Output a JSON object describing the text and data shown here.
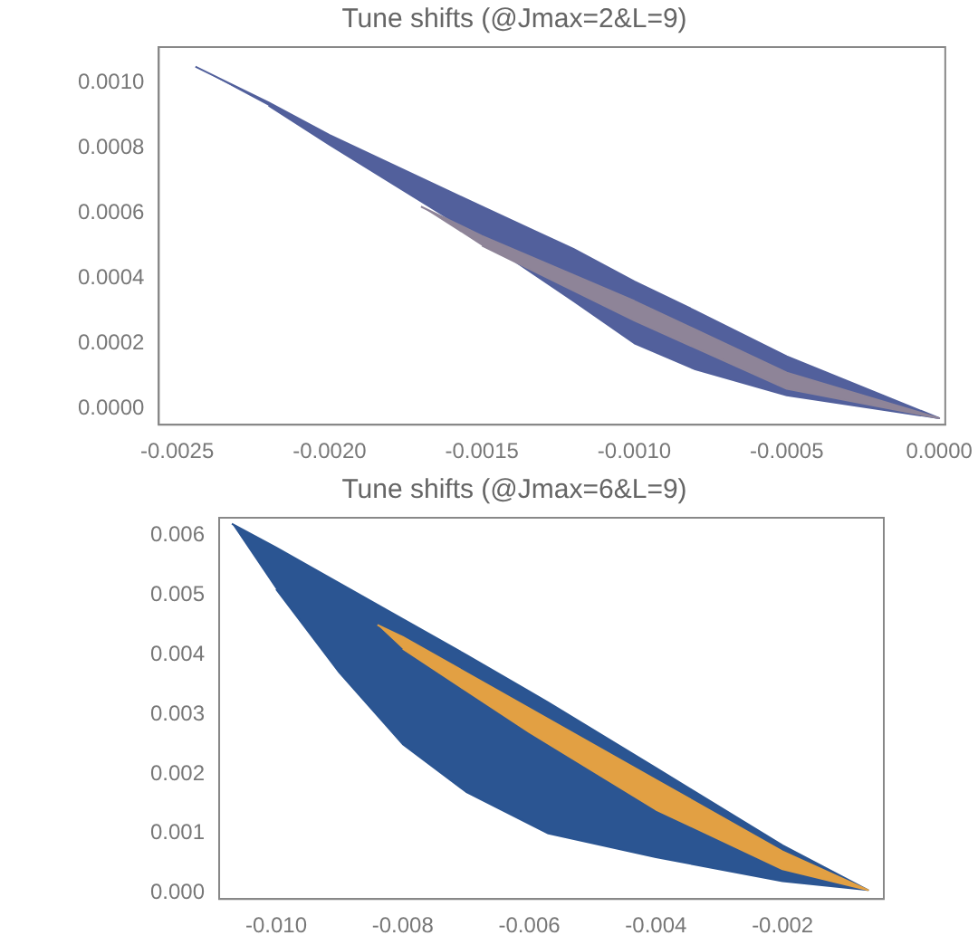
{
  "chart_data": [
    {
      "type": "area",
      "title": "Tune shifts (@Jmax=2&L=9)",
      "series": [
        {
          "color": "#52609c",
          "x": [
            -0.00244,
            -0.0022,
            -0.002,
            -0.0015,
            -0.0012,
            -0.001,
            -0.0008,
            -0.0005,
            0,
            -0.0005,
            -0.0008,
            -0.001,
            -0.0012,
            -0.0015,
            -0.002,
            -0.0022
          ],
          "values": [
            0.00105,
            0.00094,
            0.00084,
            0.00062,
            0.00049,
            0.00039,
            0.0003,
            0.00016,
            -3e-05,
            4e-05,
            0.00012,
            0.0002,
            0.00033,
            0.00052,
            0.00081,
            0.00093
          ]
        },
        {
          "color": "#8e8498",
          "x": [
            -0.0017,
            -0.0015,
            -0.001,
            -0.0005,
            0,
            -0.0005,
            -0.001,
            -0.0015
          ],
          "values": [
            0.00062,
            0.00053,
            0.00033,
            0.00011,
            -3e-05,
            6e-05,
            0.00027,
            0.0005
          ]
        }
      ],
      "xlim": [
        -0.00256,
        2e-05
      ],
      "ylim": [
        -5e-05,
        0.00111
      ],
      "xticks": [
        {
          "value": -0.0025,
          "label": "-0.0025"
        },
        {
          "value": -0.002,
          "label": "-0.0020"
        },
        {
          "value": -0.0015,
          "label": "-0.0015"
        },
        {
          "value": -0.001,
          "label": "-0.0010"
        },
        {
          "value": -0.0005,
          "label": "-0.0005"
        },
        {
          "value": 0,
          "label": "0.0000"
        }
      ],
      "yticks": [
        {
          "value": 0,
          "label": "0.0000"
        },
        {
          "value": 0.0002,
          "label": "0.0002"
        },
        {
          "value": 0.0004,
          "label": "0.0004"
        },
        {
          "value": 0.0006,
          "label": "0.0006"
        },
        {
          "value": 0.0008,
          "label": "0.0008"
        },
        {
          "value": 0.001,
          "label": "0.0010"
        }
      ],
      "grid": false,
      "legend": false
    },
    {
      "type": "area",
      "title": "Tune shifts (@Jmax=6&L=9)",
      "series": [
        {
          "color": "#2b5592",
          "x": [
            -0.0107,
            -0.01,
            -0.009,
            -0.008,
            -0.007,
            -0.0057,
            -0.004,
            -0.002,
            -0.00065,
            -0.002,
            -0.004,
            -0.0057,
            -0.007,
            -0.008,
            -0.009,
            -0.01
          ],
          "values": [
            0.0062,
            0.0058,
            0.0052,
            0.0046,
            0.004,
            0.0032,
            0.0021,
            0.0008,
            5e-05,
            0.0002,
            0.0006,
            0.001,
            0.0017,
            0.0025,
            0.0037,
            0.0051
          ]
        },
        {
          "color": "#e2a043",
          "x": [
            -0.0084,
            -0.008,
            -0.006,
            -0.004,
            -0.002,
            -0.00065,
            -0.002,
            -0.004,
            -0.006,
            -0.008
          ],
          "values": [
            0.0045,
            0.0043,
            0.0031,
            0.0019,
            0.0007,
            5e-05,
            0.0004,
            0.0014,
            0.0027,
            0.0041
          ]
        }
      ],
      "xlim": [
        -0.0109,
        -0.0004
      ],
      "ylim": [
        -0.0001,
        0.0063
      ],
      "xticks": [
        {
          "value": -0.01,
          "label": "-0.010"
        },
        {
          "value": -0.008,
          "label": "-0.008"
        },
        {
          "value": -0.006,
          "label": "-0.006"
        },
        {
          "value": -0.004,
          "label": "-0.004"
        },
        {
          "value": -0.002,
          "label": "-0.002"
        }
      ],
      "yticks": [
        {
          "value": 0,
          "label": "0.000"
        },
        {
          "value": 0.001,
          "label": "0.001"
        },
        {
          "value": 0.002,
          "label": "0.002"
        },
        {
          "value": 0.003,
          "label": "0.003"
        },
        {
          "value": 0.004,
          "label": "0.004"
        },
        {
          "value": 0.005,
          "label": "0.005"
        },
        {
          "value": 0.006,
          "label": "0.006"
        }
      ],
      "grid": false,
      "legend": false
    }
  ]
}
